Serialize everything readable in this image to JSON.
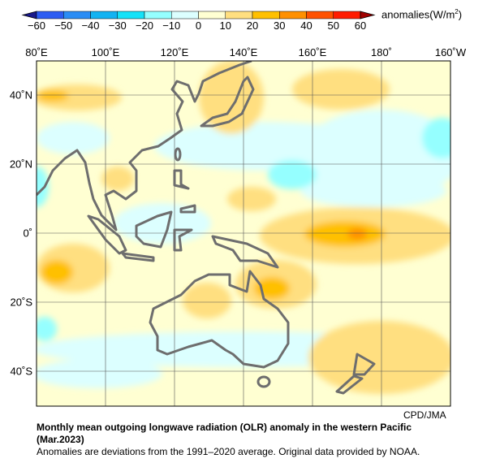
{
  "colorbar": {
    "label": "anomalies(W/m",
    "label_sup": "2",
    "label_end": ")",
    "ticks": [
      "−60",
      "−50",
      "−40",
      "−30",
      "−20",
      "−10",
      "0",
      "10",
      "20",
      "30",
      "40",
      "50",
      "60"
    ],
    "colors": [
      "#2c5cf2",
      "#2b8df5",
      "#12b3f2",
      "#14e2f8",
      "#95ffff",
      "#dcffff",
      "#ffffd2",
      "#ffdf80",
      "#ffc000",
      "#ff9000",
      "#ff5200",
      "#ff1c00"
    ],
    "under_color": "#1a1a8c",
    "over_color": "#a00000"
  },
  "axes": {
    "lon_labels": [
      "80˚E",
      "100˚E",
      "120˚E",
      "140˚E",
      "160˚E",
      "180˚",
      "160˚W"
    ],
    "lat_labels": [
      "40˚N",
      "20˚N",
      "0˚",
      "20˚S",
      "40˚S"
    ]
  },
  "credit": "CPD/JMA",
  "caption": {
    "title_line1": "Monthly mean outgoing longwave radiation (OLR) anomaly in the western Pacific",
    "title_line2": "(Mar.2023)",
    "note": "Anomalies are deviations from the 1991–2020 average. Original data provided by NOAA."
  }
}
